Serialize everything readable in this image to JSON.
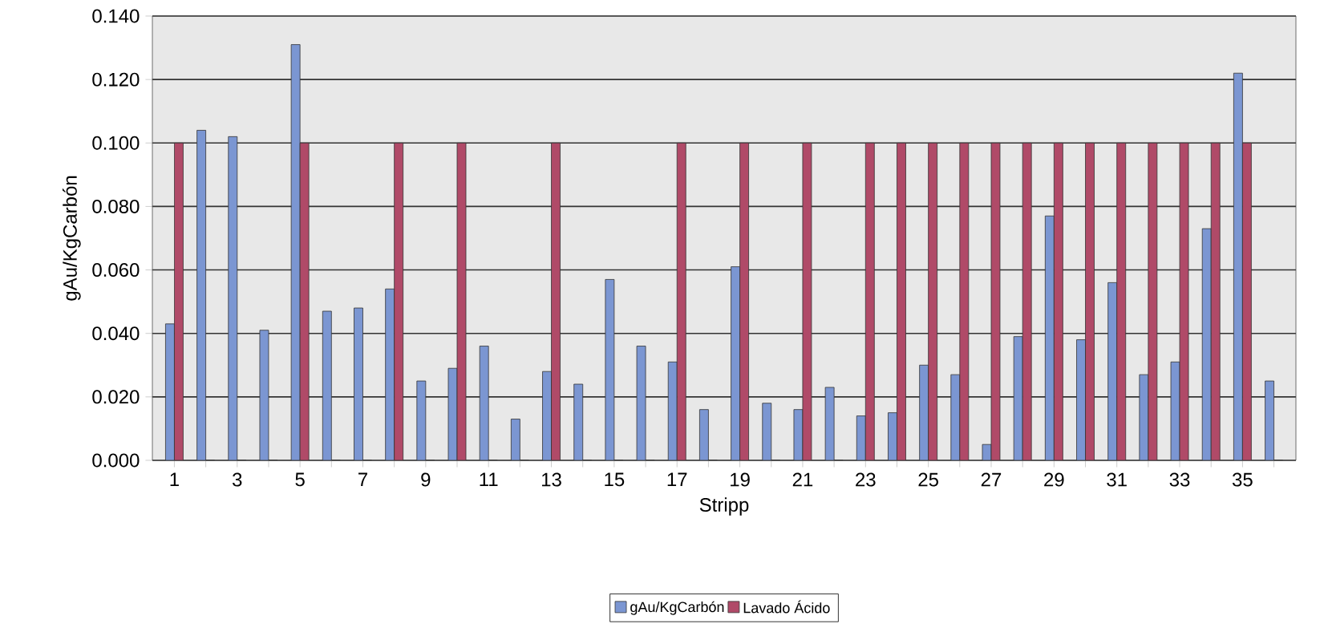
{
  "chart_data": {
    "type": "bar",
    "xlabel": "Stripp",
    "ylabel": "gAu/KgCarbón",
    "categories": [
      "1",
      null,
      "3",
      null,
      "5",
      null,
      "7",
      null,
      "9",
      null,
      "11",
      null,
      "13",
      null,
      "15",
      null,
      "17",
      null,
      "19",
      null,
      "21",
      null,
      "23",
      null,
      "25",
      null,
      "27",
      null,
      "29",
      null,
      "31",
      null,
      "33",
      null,
      "35",
      null
    ],
    "series": [
      {
        "name": "gAu/KgCarbón",
        "color": "#7b96d2",
        "values": [
          0.043,
          0.104,
          0.102,
          0.041,
          0.131,
          0.047,
          0.048,
          0.054,
          0.025,
          0.029,
          0.036,
          0.013,
          0.028,
          0.024,
          0.057,
          0.036,
          0.031,
          0.016,
          0.061,
          0.018,
          0.016,
          0.023,
          0.014,
          0.015,
          0.03,
          0.027,
          0.005,
          0.039,
          0.077,
          0.038,
          0.056,
          0.027,
          0.031,
          0.073,
          0.122,
          0.025
        ]
      },
      {
        "name": "Lavado Ácido",
        "color": "#b04a68",
        "values": [
          0.1,
          0,
          0,
          0,
          0.1,
          0,
          0,
          0.1,
          0,
          0.1,
          0,
          0,
          0.1,
          0,
          0,
          0,
          0.1,
          0,
          0.1,
          0,
          0.1,
          0,
          0.1,
          0.1,
          0.1,
          0.1,
          0.1,
          0.1,
          0.1,
          0.1,
          0.1,
          0.1,
          0.1,
          0.1,
          0.1,
          0
        ]
      }
    ],
    "ylim": [
      0,
      0.14
    ],
    "yticks": [
      {
        "value": 0,
        "label": "0.000"
      },
      {
        "value": 0.02,
        "label": "0.020"
      },
      {
        "value": 0.04,
        "label": "0.040"
      },
      {
        "value": 0.06,
        "label": "0.060"
      },
      {
        "value": 0.08,
        "label": "0.080"
      },
      {
        "value": 0.1,
        "label": "0.100"
      },
      {
        "value": 0.12,
        "label": "0.120"
      },
      {
        "value": 0.14,
        "label": "0.140"
      }
    ],
    "grid": "y",
    "legend": "bottom"
  }
}
